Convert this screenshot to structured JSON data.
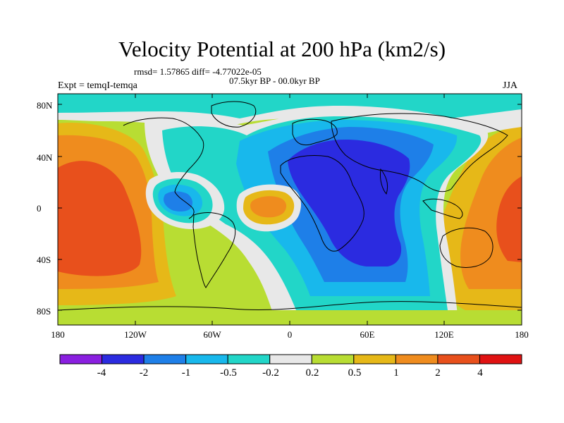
{
  "title": "Velocity Potential at 200 hPa (km2/s)",
  "stats": "rmsd= 1.57865 diff= -4.77022e-05",
  "period": "07.5kyr BP - 00.0kyr BP",
  "experiment": "Expt = temqI-temqa",
  "season": "JJA",
  "lat_labels": [
    "80N",
    "40N",
    "0",
    "40S",
    "80S"
  ],
  "lon_labels": [
    "180",
    "120W",
    "60W",
    "0",
    "60E",
    "120E",
    "180"
  ],
  "colorbar": {
    "colors": [
      "#8a1fe0",
      "#2b2be0",
      "#1e7fe8",
      "#18b8ec",
      "#22d6c8",
      "#e8e8e8",
      "#b8dd33",
      "#e6b818",
      "#ef8c1e",
      "#e8501c",
      "#e01212"
    ],
    "labels": [
      "-4",
      "-2",
      "-1",
      "-0.5",
      "-0.2",
      "0.2",
      "0.5",
      "1",
      "2",
      "4"
    ]
  }
}
